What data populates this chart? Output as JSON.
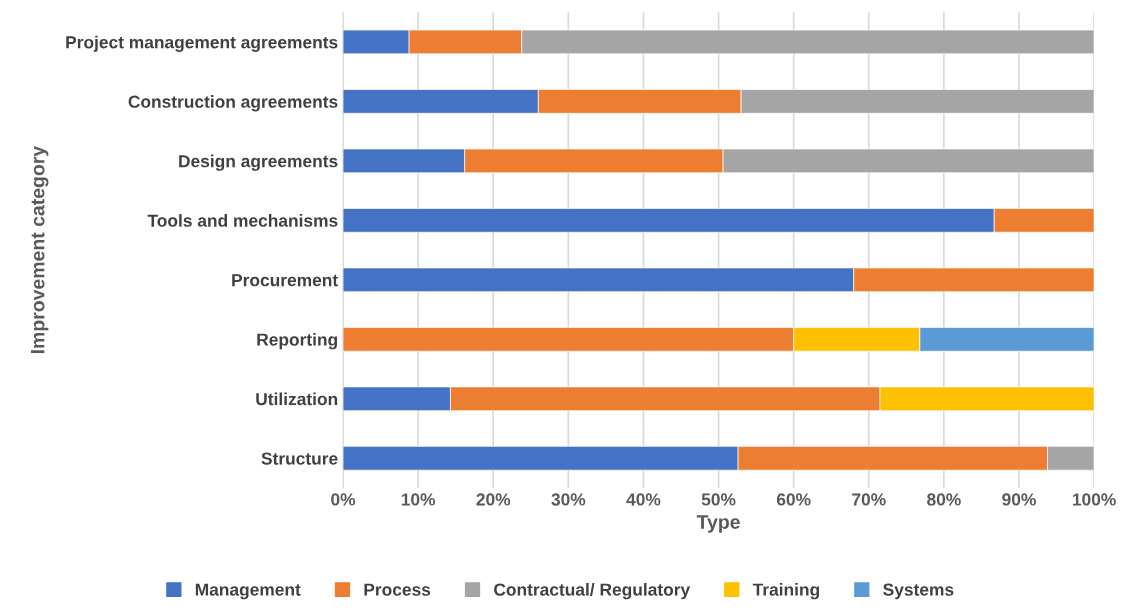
{
  "chart_data": {
    "type": "bar",
    "orientation": "horizontal",
    "stacked": true,
    "xlabel": "Type",
    "ylabel": "Improvement category",
    "categories": [
      "Project management agreements",
      "Construction agreements",
      "Design agreements",
      "Tools and mechanisms",
      "Procurement",
      "Reporting",
      "Utilization",
      "Structure"
    ],
    "series": [
      {
        "name": "Management",
        "color": "#4472c4",
        "values": [
          8.8,
          26.0,
          16.2,
          86.7,
          68.0,
          null,
          14.3,
          52.6
        ]
      },
      {
        "name": "Process",
        "color": "#ed7d31",
        "values": [
          15.0,
          27.0,
          34.4,
          13.3,
          32.0,
          60.0,
          57.2,
          41.2
        ]
      },
      {
        "name": "Contractual/ Regulatory",
        "color": "#a5a5a5",
        "values": [
          76.2,
          47.0,
          49.4,
          null,
          null,
          null,
          null,
          6.2
        ]
      },
      {
        "name": "Training",
        "color": "#ffc000",
        "values": [
          null,
          null,
          null,
          null,
          null,
          16.8,
          28.5,
          null
        ]
      },
      {
        "name": "Systems",
        "color": "#5b9bd5",
        "values": [
          null,
          null,
          null,
          null,
          null,
          23.2,
          null,
          null
        ]
      }
    ],
    "xlim": [
      0,
      100
    ],
    "xticks": [
      {
        "value": 0,
        "label": "0%"
      },
      {
        "value": 10,
        "label": "10%"
      },
      {
        "value": 20,
        "label": "20%"
      },
      {
        "value": 30,
        "label": "30%"
      },
      {
        "value": 40,
        "label": "40%"
      },
      {
        "value": 50,
        "label": "50%"
      },
      {
        "value": 60,
        "label": "60%"
      },
      {
        "value": 70,
        "label": "70%"
      },
      {
        "value": 80,
        "label": "80%"
      },
      {
        "value": 90,
        "label": "90%"
      },
      {
        "value": 100,
        "label": "100%"
      }
    ],
    "grid": "x",
    "legend": "bottom"
  }
}
